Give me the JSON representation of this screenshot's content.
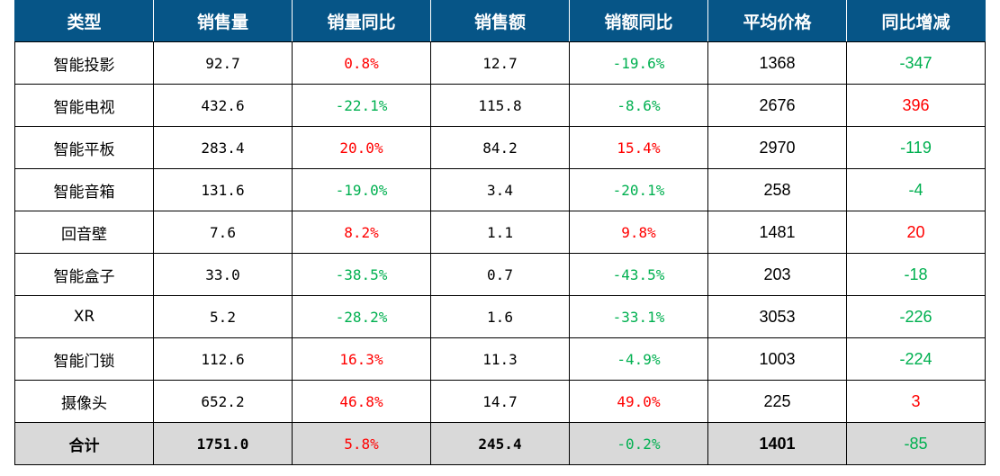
{
  "colors": {
    "header_bg": "#065587",
    "positive": "#ff0000",
    "negative": "#00b050",
    "total_bg": "#d9d9d9"
  },
  "headers": [
    "类型",
    "销售量",
    "销量同比",
    "销售额",
    "销额同比",
    "平均价格",
    "同比增减"
  ],
  "rows": [
    [
      "智能投影",
      "92.7",
      "0.8%",
      "12.7",
      "-19.6%",
      "1368",
      "-347"
    ],
    [
      "智能电视",
      "432.6",
      "-22.1%",
      "115.8",
      "-8.6%",
      "2676",
      "396"
    ],
    [
      "智能平板",
      "283.4",
      "20.0%",
      "84.2",
      "15.4%",
      "2970",
      "-119"
    ],
    [
      "智能音箱",
      "131.6",
      "-19.0%",
      "3.4",
      "-20.1%",
      "258",
      "-4"
    ],
    [
      "回音壁",
      "7.6",
      "8.2%",
      "1.1",
      "9.8%",
      "1481",
      "20"
    ],
    [
      "智能盒子",
      "33.0",
      "-38.5%",
      "0.7",
      "-43.5%",
      "203",
      "-18"
    ],
    [
      "XR",
      "5.2",
      "-28.2%",
      "1.6",
      "-33.1%",
      "3053",
      "-226"
    ],
    [
      "智能门锁",
      "112.6",
      "16.3%",
      "11.3",
      "-4.9%",
      "1003",
      "-224"
    ],
    [
      "摄像头",
      "652.2",
      "46.8%",
      "14.7",
      "49.0%",
      "225",
      "3"
    ]
  ],
  "total": [
    "合计",
    "1751.0",
    "5.8%",
    "245.4",
    "-0.2%",
    "1401",
    "-85"
  ]
}
